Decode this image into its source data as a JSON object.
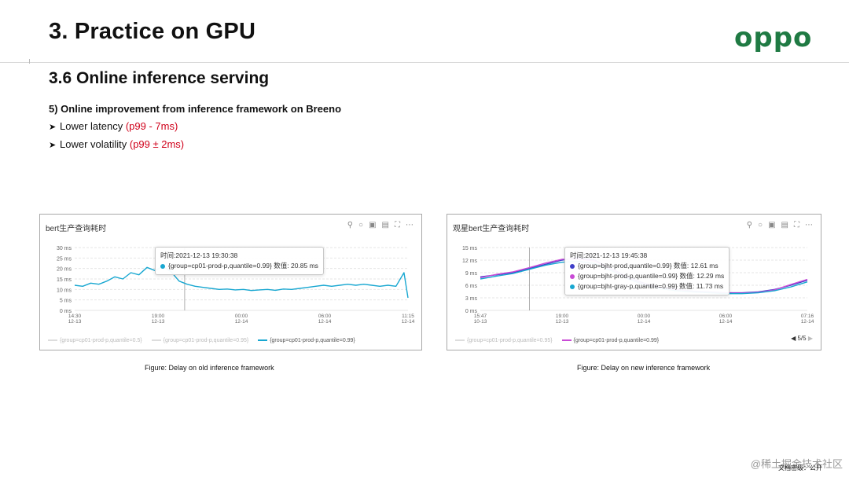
{
  "slide": {
    "title": "3. Practice on GPU",
    "logo": "oppo",
    "section": "3.6 Online inference serving",
    "point_heading": "5) Online improvement from inference framework on Breeno",
    "bullets": [
      {
        "text": "Lower latency ",
        "highlight": "(p99 - 7ms)"
      },
      {
        "text": "Lower volatility ",
        "highlight": "(p99 ± 2ms)"
      }
    ],
    "accent_color": "#d0021b",
    "logo_color": "#1f7a43"
  },
  "panels": [
    {
      "title": "bert生产查询耗时",
      "tool_icons": [
        "search-icon",
        "bell-icon",
        "save-icon",
        "doc-icon",
        "fullscreen-icon",
        "more-icon"
      ],
      "tooltip": {
        "time": "时间:2021-12-13 19:30:38",
        "rows": [
          {
            "label": "{group=cp01-prod-p,quantile=0.99} 数值:",
            "value": "20.85 ms",
            "color": "#18a7d1"
          }
        ]
      },
      "legend": [
        {
          "label": "{group=cp01-prod-p,quantile=0.5}",
          "active": false
        },
        {
          "label": "{group=cp01-prod-p,quantile=0.95}",
          "active": false
        },
        {
          "label": "{group=cp01-prod-p,quantile=0.99}",
          "active": true,
          "color": "#18a7d1"
        }
      ],
      "caption": "Figure: Delay on old inference framework"
    },
    {
      "title": "观星bert生产查询耗时",
      "tool_icons": [
        "search-icon",
        "bell-icon",
        "save-icon",
        "doc-icon",
        "fullscreen-icon",
        "more-icon"
      ],
      "tooltip": {
        "time": "时间:2021-12-13 19:45:38",
        "rows": [
          {
            "label": "{group=bjht-prod,quantile=0.99} 数值:",
            "value": "12.61 ms",
            "color": "#3f3fc9"
          },
          {
            "label": "{group=bjht-prod-p,quantile=0.99} 数值:",
            "value": "12.29 ms",
            "color": "#c94bd6"
          },
          {
            "label": "{group=bjht-gray-p,quantile=0.99} 数值:",
            "value": "11.73 ms",
            "color": "#18a7d1"
          }
        ]
      },
      "legend": [
        {
          "label": "{group=cp01-prod-p,quantile=0.95}",
          "active": false
        },
        {
          "label": "{group=cp01-prod-p,quantile=0.99}",
          "active": true,
          "color": "#c94bd6"
        }
      ],
      "pager": "5/5",
      "caption": "Figure: Delay on new inference framework"
    }
  ],
  "chart_data": [
    {
      "type": "line",
      "title": "bert生产查询耗时",
      "ylim": [
        0,
        30
      ],
      "yticks": [
        "0 ms",
        "5 ms",
        "10 ms",
        "15 ms",
        "20 ms",
        "25 ms",
        "30 ms"
      ],
      "xticks": [
        "14:30\n12-13",
        "19:00\n12-13",
        "00:00\n12-14",
        "06:00\n12-14",
        "11:15\n12-14"
      ],
      "grid": true,
      "series": [
        {
          "name": "{group=cp01-prod-p,quantile=0.99}",
          "color": "#18a7d1",
          "x": [
            0.0,
            0.5,
            1.0,
            1.5,
            2.0,
            2.5,
            3.0,
            3.5,
            4.0,
            4.5,
            5.0,
            5.5,
            6.0,
            6.5,
            7.0,
            7.5,
            8.0,
            8.5,
            9.0,
            9.5,
            10.0,
            10.5,
            11.0,
            11.5,
            12.0,
            12.5,
            13.0,
            13.5,
            14.0,
            14.5,
            15.0,
            15.5,
            16.0,
            16.5,
            17.0,
            17.5,
            18.0,
            18.5,
            19.0,
            19.5,
            20.0,
            20.5,
            20.75
          ],
          "values": [
            12,
            11.5,
            13,
            12.5,
            14,
            16,
            15,
            18,
            17,
            20.5,
            19,
            21,
            18.5,
            14,
            12.5,
            11.5,
            11,
            10.5,
            10,
            10.2,
            9.8,
            10,
            9.5,
            9.8,
            10,
            9.6,
            10.2,
            10,
            10.5,
            11,
            11.5,
            12,
            11.5,
            12,
            12.5,
            12,
            12.5,
            12,
            11.5,
            12,
            11.5,
            18,
            6
          ]
        }
      ]
    },
    {
      "type": "line",
      "title": "观星bert生产查询耗时",
      "ylim": [
        0,
        15
      ],
      "yticks": [
        "0 ms",
        "3 ms",
        "6 ms",
        "9 ms",
        "12 ms",
        "15 ms"
      ],
      "xticks": [
        "15:47\n10-13",
        "19:00\n12-13",
        "00:00\n12-14",
        "06:00\n12-14",
        "07:16\n12-14"
      ],
      "grid": true,
      "series": [
        {
          "name": "{group=bjht-prod,quantile=0.99}",
          "color": "#3f3fc9",
          "x": [
            0,
            1,
            2,
            3,
            4,
            5,
            6,
            7,
            8,
            9,
            10,
            11,
            12,
            13,
            14,
            15,
            16,
            17,
            18,
            19,
            20
          ],
          "values": [
            8,
            8.5,
            9,
            10,
            11,
            12,
            12.6,
            12,
            10,
            8,
            6.5,
            5.5,
            5,
            4.6,
            4.4,
            4.2,
            4.2,
            4.4,
            5,
            6,
            7.2
          ]
        },
        {
          "name": "{group=bjht-prod-p,quantile=0.99}",
          "color": "#c94bd6",
          "x": [
            0,
            1,
            2,
            3,
            4,
            5,
            6,
            7,
            8,
            9,
            10,
            11,
            12,
            13,
            14,
            15,
            16,
            17,
            18,
            19,
            20
          ],
          "values": [
            7.8,
            8.6,
            9.2,
            10.2,
            11.3,
            12.2,
            12.3,
            11.8,
            9.8,
            7.8,
            6.3,
            5.4,
            4.9,
            4.5,
            4.3,
            4.1,
            4.1,
            4.3,
            4.9,
            6.2,
            7.4
          ]
        },
        {
          "name": "{group=bjht-gray-p,quantile=0.99}",
          "color": "#18a7d1",
          "x": [
            0,
            1,
            2,
            3,
            4,
            5,
            6,
            7,
            8,
            9,
            10,
            11,
            12,
            13,
            14,
            15,
            16,
            17,
            18,
            19,
            20
          ],
          "values": [
            7.5,
            8.2,
            8.8,
            9.8,
            10.8,
            11.5,
            11.7,
            11.2,
            9.5,
            7.6,
            6.1,
            5.2,
            4.7,
            4.4,
            4.2,
            4.0,
            4.0,
            4.2,
            4.7,
            5.6,
            6.8
          ]
        }
      ]
    }
  ],
  "footer": {
    "watermark": "@稀土掘金技术社区",
    "classification": "文档密级：公开"
  }
}
